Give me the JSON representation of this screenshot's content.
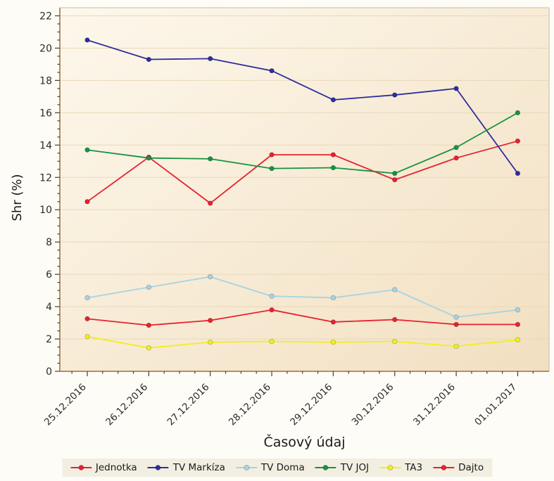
{
  "chart_data": {
    "type": "line",
    "title": "",
    "xlabel": "Časový údaj",
    "ylabel": "Shr (%)",
    "x": [
      "25.12.2016",
      "26.12.2016",
      "27.12.2016",
      "28.12.2016",
      "29.12.2016",
      "30.12.2016",
      "31.12.2016",
      "01.01.2017"
    ],
    "series": [
      {
        "name": "Jednotka",
        "color": "#e8212e",
        "values": [
          10.5,
          13.25,
          10.4,
          13.4,
          13.4,
          11.85,
          13.2,
          14.25
        ]
      },
      {
        "name": "TV Markíza",
        "color": "#2e2e9e",
        "values": [
          20.5,
          19.3,
          19.35,
          18.6,
          16.8,
          17.1,
          17.5,
          12.25
        ]
      },
      {
        "name": "TV Doma",
        "color": "#a8d3e1",
        "values": [
          4.55,
          5.2,
          5.85,
          4.65,
          4.55,
          5.05,
          3.35,
          3.8
        ]
      },
      {
        "name": "TV JOJ",
        "color": "#179240",
        "values": [
          13.7,
          13.2,
          13.15,
          12.55,
          12.6,
          12.25,
          13.85,
          16.0
        ]
      },
      {
        "name": "TA3",
        "color": "#f3ef1a",
        "values": [
          2.15,
          1.45,
          1.8,
          1.85,
          1.8,
          1.85,
          1.55,
          1.95
        ]
      },
      {
        "name": "Dajto",
        "color": "#e8212e",
        "values": [
          3.25,
          2.85,
          3.15,
          3.8,
          3.05,
          3.2,
          2.9,
          2.9
        ]
      }
    ],
    "ylim": [
      0,
      22.5
    ],
    "y_tick_labels": [
      "0",
      "2",
      "4",
      "6",
      "8",
      "10",
      "12",
      "14",
      "16",
      "18",
      "20",
      "22"
    ],
    "y_major_step": 2,
    "y_minor_step": 0.5,
    "x_minor_ticks_per_interval": 3,
    "grid": "horizontal-major-only",
    "legend_position": "bottom"
  },
  "style": {
    "page_bg": "#fdfcf6",
    "plot_bg_top_left": "#fdf8ec",
    "plot_bg_bottom_right": "#f2dfc1",
    "gridline_color": "#e9d8b9",
    "plot_border_color": "#c7bda8",
    "axis_line_color": "#b2906b",
    "tick_color": "#4e3d28",
    "tick_label_color": "#2b2b2b",
    "legend_bg": "#f2efe2"
  }
}
